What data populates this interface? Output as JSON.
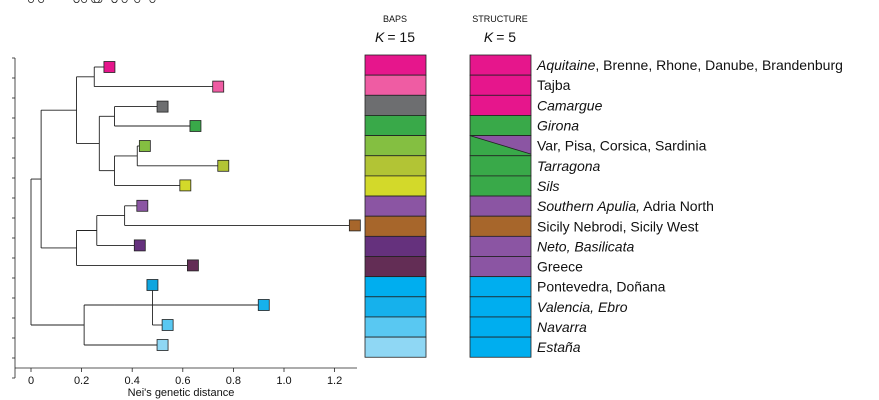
{
  "axis": {
    "label": "Nei's genetic distance",
    "ticks": [
      {
        "value": 0,
        "label": "0"
      },
      {
        "value": 0.2,
        "label": "0.2"
      },
      {
        "value": 0.4,
        "label": "0.4"
      },
      {
        "value": 0.6,
        "label": "0.6"
      },
      {
        "value": 0.8,
        "label": "0.8"
      },
      {
        "value": 1.0,
        "label": "1.0"
      },
      {
        "value": 1.2,
        "label": "1.2"
      }
    ]
  },
  "columns": {
    "baps": {
      "title": "BAPS",
      "k_symbol": "K",
      "k_value": "= 15"
    },
    "structure": {
      "title": "STRUCTURE",
      "k_symbol": "K",
      "k_value": "= 5"
    }
  },
  "tree": {
    "nodes": [
      {
        "id": "root",
        "x": 0.0,
        "children": [
          "A",
          "B"
        ]
      },
      {
        "id": "A",
        "x": 0.04,
        "children": [
          "C",
          "D"
        ]
      },
      {
        "id": "C",
        "x": 0.18,
        "children": [
          "E",
          "F"
        ]
      },
      {
        "id": "E",
        "x": 0.25,
        "children": [
          "t0",
          "t1"
        ]
      },
      {
        "id": "F",
        "x": 0.27,
        "children": [
          "G",
          "H"
        ]
      },
      {
        "id": "G",
        "x": 0.33,
        "children": [
          "t2",
          "t3"
        ]
      },
      {
        "id": "H",
        "x": 0.33,
        "children": [
          "I",
          "t6"
        ]
      },
      {
        "id": "I",
        "x": 0.42,
        "children": [
          "t4",
          "t5"
        ]
      },
      {
        "id": "D",
        "x": 0.18,
        "children": [
          "J",
          "t10"
        ]
      },
      {
        "id": "J",
        "x": 0.26,
        "children": [
          "K",
          "t9"
        ]
      },
      {
        "id": "K",
        "x": 0.37,
        "children": [
          "t7",
          "t8"
        ]
      },
      {
        "id": "B",
        "x": 0.21,
        "children": [
          "L",
          "t15"
        ]
      },
      {
        "id": "L",
        "x": 0.33,
        "children": [
          "M",
          "t14"
        ]
      },
      {
        "id": "M",
        "x": 0.48,
        "children": [
          "t11",
          "t12",
          "t13"
        ]
      }
    ],
    "tips": [
      {
        "id": "t0",
        "x": 0.31,
        "color": "#e6168c"
      },
      {
        "id": "t1",
        "x": 0.74,
        "color": "#ef5ca3"
      },
      {
        "id": "t2",
        "x": 0.52,
        "color": "#6d6e70"
      },
      {
        "id": "t3",
        "x": 0.65,
        "color": "#39a949"
      },
      {
        "id": "t4",
        "x": 0.45,
        "color": "#84bf41"
      },
      {
        "id": "t5",
        "x": 0.76,
        "color": "#b2c435"
      },
      {
        "id": "t6",
        "x": 0.61,
        "color": "#d3d92a"
      },
      {
        "id": "t7",
        "x": 0.44,
        "color": "#8b55a3"
      },
      {
        "id": "t8",
        "x": 1.28,
        "color": "#a7662b"
      },
      {
        "id": "t9",
        "x": 0.43,
        "color": "#65317d"
      },
      {
        "id": "t10",
        "x": 0.64,
        "color": "#632d55"
      },
      {
        "id": "t11",
        "x": 0.48,
        "color": "#0ea5df"
      },
      {
        "id": "t12",
        "x": 0.92,
        "color": "#16b1ec"
      },
      {
        "id": "t13",
        "x": 0.54,
        "color": "#59c8f2"
      },
      {
        "id": "t15",
        "x": 0.52,
        "color": "#8fd7f4"
      },
      {
        "id": "t14",
        "x": 0.0,
        "color": "#ffffff"
      }
    ]
  },
  "baps_bars": [
    "#e6168c",
    "#ef5ca3",
    "#6d6e70",
    "#39a949",
    "#84bf41",
    "#b2c435",
    "#d3d92a",
    "#8b55a3",
    "#a7662b",
    "#65317d",
    "#632d55",
    "#00aeef",
    "#16b1ec",
    "#59c8f2",
    "#8fd7f4"
  ],
  "structure_bars": [
    "#e6168c",
    "#e6168c",
    "#e6168c",
    "#39a949",
    "split",
    "#39a949",
    "#39a949",
    "#8b55a3",
    "#a7662b",
    "#8b55a3",
    "#8b55a3",
    "#00aeef",
    "#00aeef",
    "#00aeef",
    "#00aeef"
  ],
  "structure_split_colors": [
    "#39a949",
    "#8b55a3"
  ],
  "populations": [
    {
      "italic": "Aquitaine",
      "plain": ", Brenne, Rhone, Danube, Brandenburg"
    },
    {
      "italic": "",
      "plain": "Tajba"
    },
    {
      "italic": "Camargue",
      "plain": ""
    },
    {
      "italic": "Girona",
      "plain": ""
    },
    {
      "italic": "",
      "plain": "Var, Pisa, Corsica, Sardinia"
    },
    {
      "italic": "Tarragona",
      "plain": ""
    },
    {
      "italic": "Sils",
      "plain": ""
    },
    {
      "italic": "Southern Apulia,",
      "plain": " Adria North"
    },
    {
      "italic": "",
      "plain": "Sicily Nebrodi, Sicily West"
    },
    {
      "italic": "Neto, Basilicata",
      "plain": ""
    },
    {
      "italic": "",
      "plain": "Greece"
    },
    {
      "italic": "",
      "plain": "Pontevedra, Doñana"
    },
    {
      "italic": "Valencia, Ebro",
      "plain": ""
    },
    {
      "italic": "Navarra",
      "plain": ""
    },
    {
      "italic": "Estaña",
      "plain": ""
    }
  ]
}
